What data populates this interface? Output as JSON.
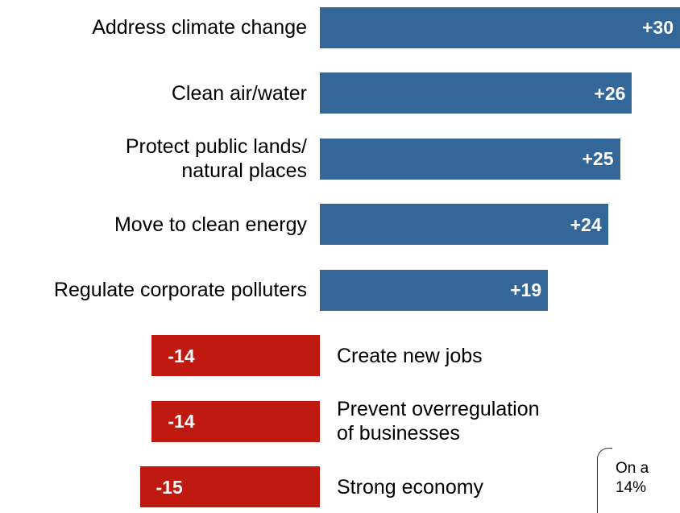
{
  "chart_data": {
    "type": "bar",
    "orientation": "horizontal-diverging",
    "categories": [
      "Address climate change",
      "Clean air/water",
      "Protect public lands/\nnatural places",
      "Move to clean energy",
      "Regulate corporate polluters",
      "Create new jobs",
      "Prevent overregulation\nof businesses",
      "Strong economy"
    ],
    "values": [
      30,
      26,
      25,
      24,
      19,
      -14,
      -14,
      -15
    ],
    "value_labels": [
      "+30",
      "+26",
      "+25",
      "+24",
      "+19",
      "-14",
      "-14",
      "-15"
    ],
    "colors": {
      "positive": "#336699",
      "negative": "#C0190F"
    },
    "xlabel": "",
    "ylabel": "",
    "grid": false,
    "legend": "none"
  },
  "callout": {
    "text": "On a\n14%"
  }
}
